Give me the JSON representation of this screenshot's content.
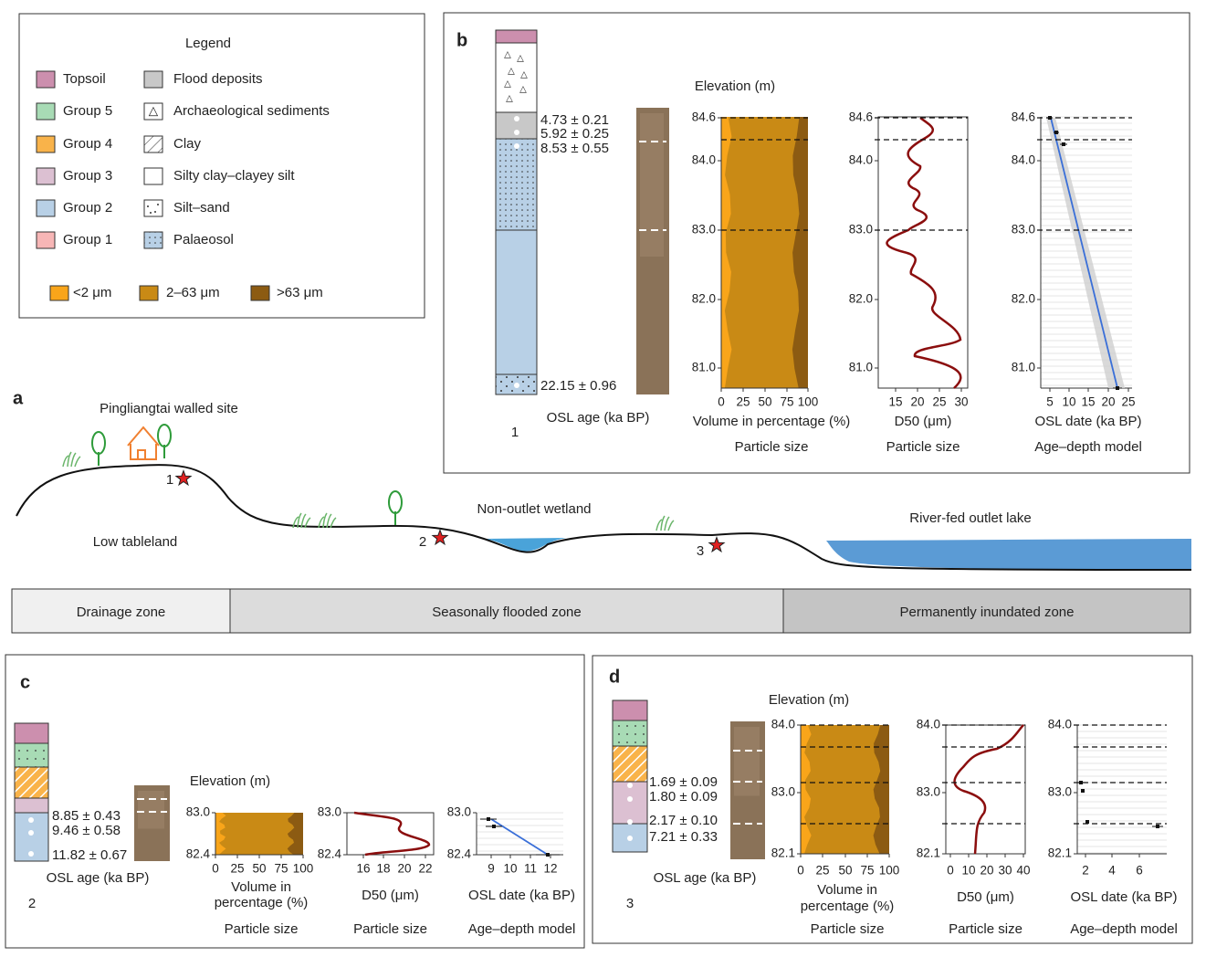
{
  "legend": {
    "title": "Legend",
    "units": [
      "Topsoil",
      "Group 5",
      "Group 4",
      "Group 3",
      "Group 2",
      "Group 1"
    ],
    "lithology": [
      "Flood deposits",
      "Archaeological sediments",
      "Clay",
      "Silty clay–clayey silt",
      "Silt–sand",
      "Palaeosol"
    ],
    "grain_sizes": [
      "<2 μm",
      "2–63 μm",
      ">63 μm"
    ]
  },
  "panel_a": {
    "label": "a",
    "site": "Pingliangtai walled site",
    "tableland": "Low tableland",
    "wetland": "Non-outlet wetland",
    "lake": "River-fed outlet lake",
    "profiles": [
      "1",
      "2",
      "3"
    ],
    "zones": [
      "Drainage zone",
      "Seasonally flooded zone",
      "Permanently inundated zone"
    ]
  },
  "panel_b": {
    "label": "b",
    "profile": "1",
    "osl_ages": [
      "4.73 ± 0.21",
      "5.92 ± 0.25",
      "8.53 ± 0.55",
      "22.15 ± 0.96"
    ],
    "osl_axis": "OSL age (ka BP)",
    "elevation": "Elevation (m)",
    "elevation_ticks": [
      "84.6",
      "84.0",
      "83.0",
      "82.0",
      "81.0"
    ],
    "volume_ticks": [
      "0",
      "25",
      "50",
      "75",
      "100"
    ],
    "volume_axis": [
      "Volume in percentage (%)"
    ],
    "d50_ticks": [
      "15",
      "20",
      "25",
      "30"
    ],
    "d50_axis": "D50 (μm)",
    "age_ticks": [
      "5",
      "10",
      "15",
      "20",
      "25"
    ],
    "age_axis": "OSL date (ka BP)",
    "particle_size": "Particle size",
    "age_depth": "Age–depth model"
  },
  "panel_c": {
    "label": "c",
    "profile": "2",
    "osl_ages": [
      "8.85 ± 0.43",
      "9.46 ± 0.58",
      "11.82 ± 0.67"
    ],
    "osl_axis": "OSL age (ka BP)",
    "elevation": "Elevation (m)",
    "elevation_ticks": [
      "83.0",
      "82.4"
    ],
    "volume_ticks": [
      "0",
      "25",
      "50",
      "75",
      "100"
    ],
    "volume_axis": [
      "Volume in",
      "percentage (%)"
    ],
    "d50_ticks": [
      "16",
      "18",
      "20",
      "22"
    ],
    "d50_axis": "D50 (μm)",
    "age_ticks": [
      "9",
      "10",
      "11",
      "12"
    ],
    "age_axis": "OSL date (ka BP)",
    "particle_size": "Particle size",
    "age_depth": "Age–depth model"
  },
  "panel_d": {
    "label": "d",
    "profile": "3",
    "osl_ages": [
      "1.69 ± 0.09",
      "1.80 ± 0.09",
      "2.17 ± 0.10",
      "7.21 ± 0.33"
    ],
    "osl_axis": "OSL age (ka BP)",
    "elevation": "Elevation (m)",
    "elevation_ticks": [
      "84.0",
      "83.0",
      "82.1"
    ],
    "volume_ticks": [
      "0",
      "25",
      "50",
      "75",
      "100"
    ],
    "volume_axis": [
      "Volume in",
      "percentage (%)"
    ],
    "d50_ticks": [
      "0",
      "10",
      "20",
      "30",
      "40"
    ],
    "d50_axis": "D50 (μm)",
    "age_ticks": [
      "2",
      "4",
      "6"
    ],
    "age_axis": "OSL date (ka BP)",
    "particle_size": "Particle size",
    "age_depth": "Age–depth model"
  }
}
